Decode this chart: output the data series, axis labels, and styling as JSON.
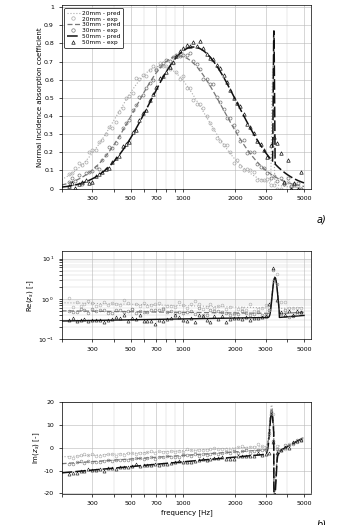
{
  "freq_range": [
    200,
    5000
  ],
  "xlim": [
    200,
    5500
  ],
  "xticks": [
    300,
    500,
    700,
    1000,
    2000,
    3000,
    5000
  ],
  "xlabel": "frequency [Hz]",
  "panel_a_ylabel": "Normal incidence absorption coefficient",
  "panel_b_ylabel": "Re(z_s) [-]",
  "panel_c_ylabel": "Im(z_s) [-]",
  "panel_a_ylim": [
    0,
    1.0
  ],
  "panel_b_ylim_log": [
    0.1,
    15
  ],
  "panel_c_ylim": [
    -20,
    20
  ],
  "background_color": "#ffffff",
  "grid_color": "#b8b8b8",
  "c20": "#aaaaaa",
  "c30": "#777777",
  "c50": "#111111",
  "peak_20mm": 750,
  "peak_30mm": 950,
  "peak_50mm": 1150,
  "peak_val_20mm": 0.675,
  "peak_val_30mm": 0.73,
  "peak_val_50mm": 0.78,
  "resonance": 3350,
  "label_a": "a)",
  "label_b": "b)",
  "legend_entries": [
    "20mm - pred",
    "20mm - exp",
    "30mm - pred",
    "30mm - exp",
    "50mm - pred",
    "50mm - exp"
  ]
}
